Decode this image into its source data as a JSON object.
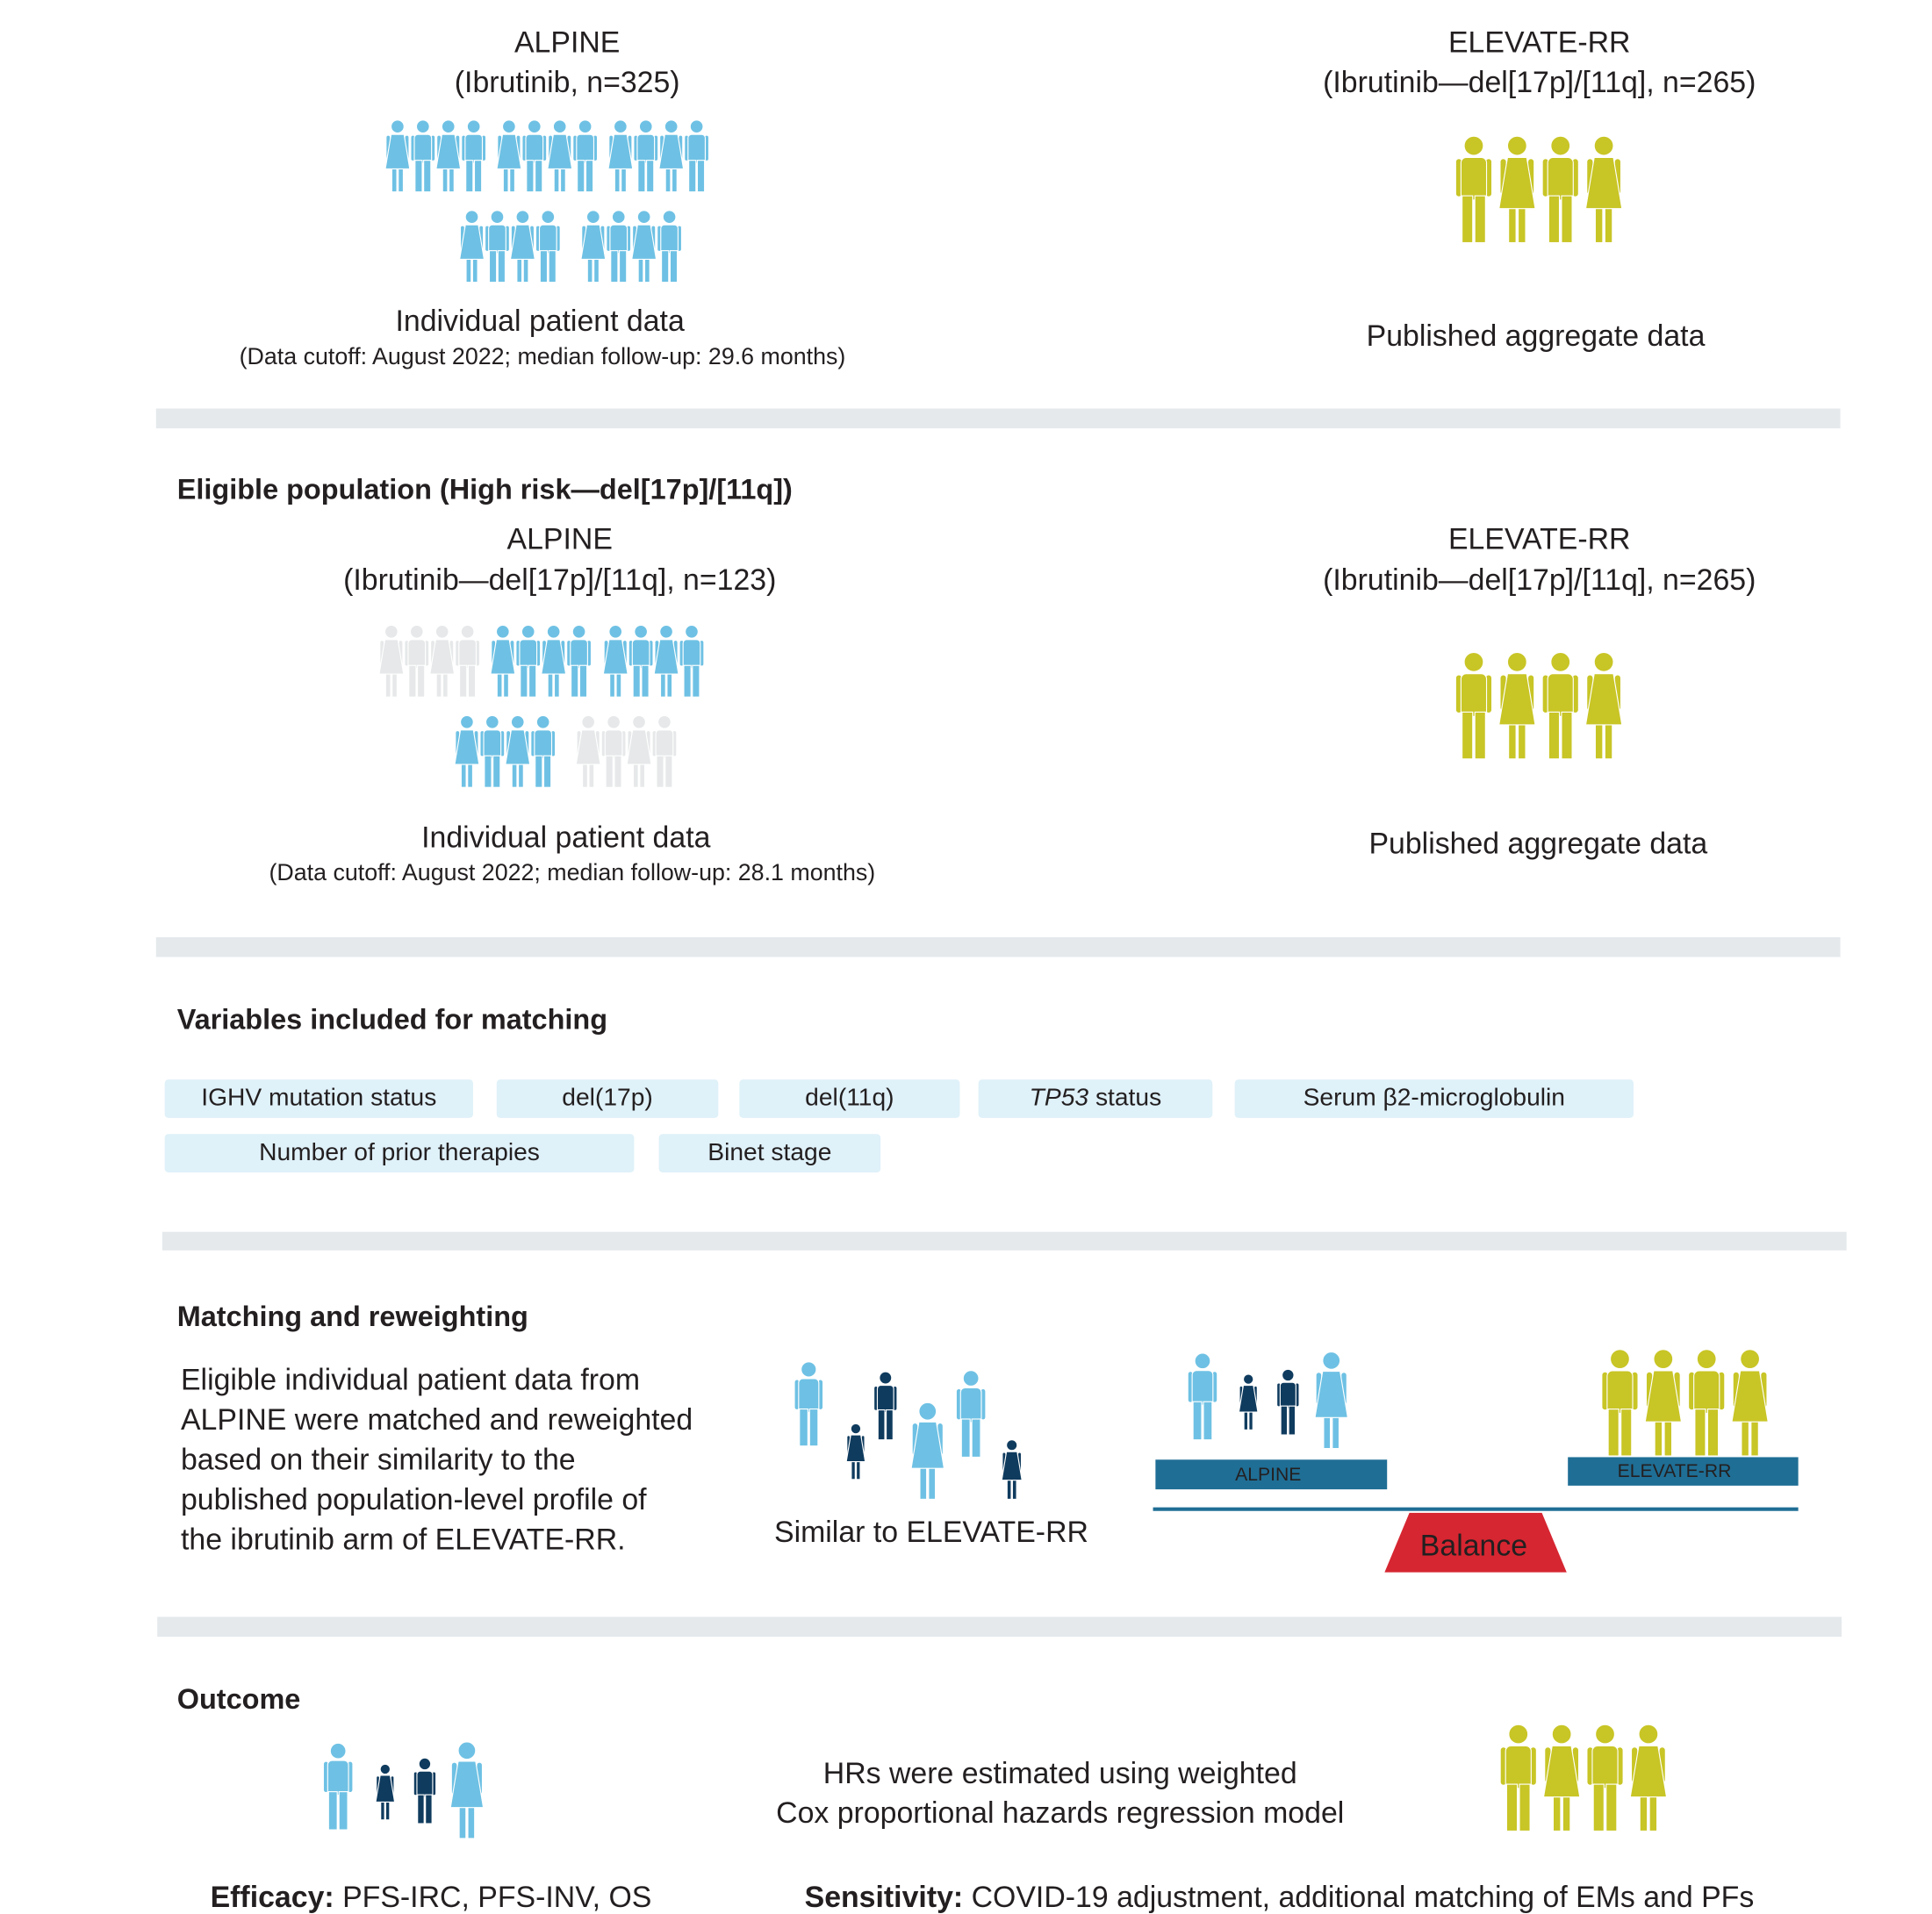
{
  "section1": {
    "left": {
      "title": "ALPINE",
      "subtitle": "(Ibrutinib, n=325)",
      "label": "Individual patient data",
      "note": "(Data cutoff: August 2022; median follow-up: 29.6 months)"
    },
    "right": {
      "title": "ELEVATE-RR",
      "subtitle": "(Ibrutinib—del[17p]/[11q], n=265)",
      "label": "Published aggregate data"
    }
  },
  "section2": {
    "heading": "Eligible population (High risk—del[17p]/[11q])",
    "left": {
      "title": "ALPINE",
      "subtitle": "(Ibrutinib—del[17p]/[11q], n=123)",
      "label": "Individual patient data",
      "note": "(Data cutoff: August 2022; median follow-up: 28.1 months)"
    },
    "right": {
      "title": "ELEVATE-RR",
      "subtitle": "(Ibrutinib—del[17p]/[11q], n=265)",
      "label": "Published aggregate data"
    }
  },
  "section3": {
    "heading": "Variables included for matching",
    "variables": [
      {
        "text": "IGHV mutation status"
      },
      {
        "text": "del(17p)"
      },
      {
        "text": "del(11q)"
      },
      {
        "italic": "TP53",
        "text": " status"
      },
      {
        "text": "Serum β2-microglobulin"
      },
      {
        "text": "Number of prior therapies"
      },
      {
        "text": "Binet stage"
      }
    ]
  },
  "section4": {
    "heading": "Matching and reweighting",
    "paragraph": [
      "Eligible individual patient data from",
      "ALPINE were matched and reweighted",
      "based on their similarity to the",
      "published population-level profile of",
      "the ibrutinib arm of ELEVATE-RR."
    ],
    "similar": "Similar to ELEVATE-RR",
    "scale_left": "ALPINE",
    "scale_right": "ELEVATE-RR",
    "fulcrum": "Balance"
  },
  "section5": {
    "heading": "Outcome",
    "method": [
      "HRs were estimated using weighted",
      "Cox proportional hazards regression model"
    ],
    "efficacy": {
      "label": "Efficacy:",
      "text": " PFS-IRC, PFS-INV, OS"
    },
    "sensitivity": {
      "label": "Sensitivity:",
      "text": " COVID-19 adjustment, additional matching of EMs and PFs"
    }
  }
}
